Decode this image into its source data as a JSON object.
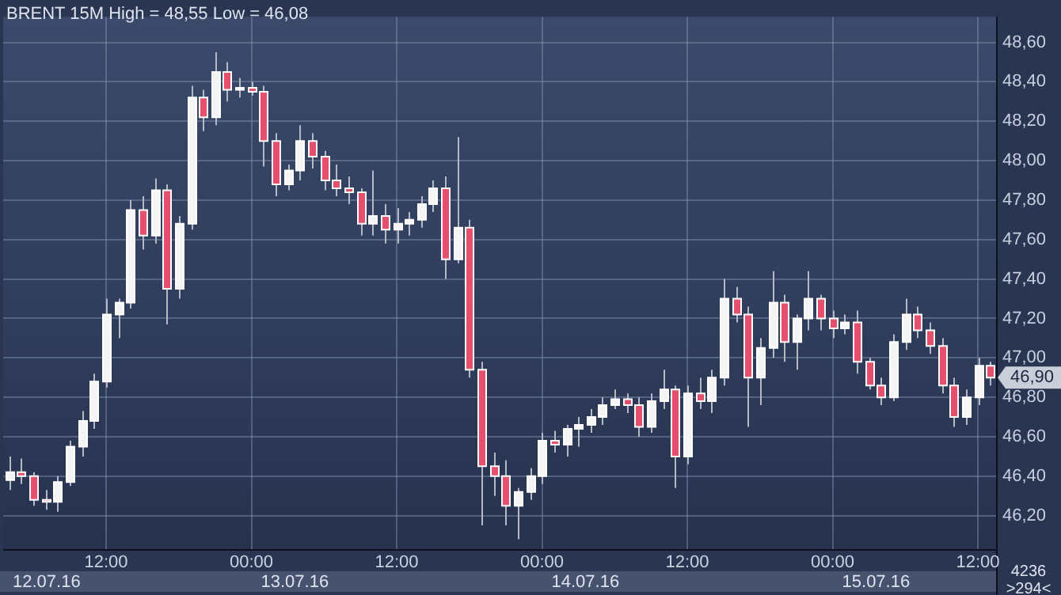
{
  "chart_data": {
    "type": "candlestick",
    "title": "BRENT 15M High = 48,55 Low = 46,08",
    "categories": [
      null,
      null,
      null,
      null,
      null,
      null,
      null,
      null,
      "12:00",
      null,
      null,
      null,
      null,
      null,
      null,
      null,
      null,
      null,
      null,
      null,
      "00:00",
      null,
      null,
      null,
      null,
      null,
      null,
      null,
      null,
      null,
      null,
      null,
      "12:00",
      null,
      null,
      null,
      null,
      null,
      null,
      null,
      null,
      null,
      null,
      null,
      "00:00",
      null,
      null,
      null,
      null,
      null,
      null,
      null,
      null,
      null,
      null,
      null,
      "12:00",
      null,
      null,
      null,
      null,
      null,
      null,
      null,
      null,
      null,
      null,
      null,
      "00:00",
      null,
      null,
      null,
      null,
      null,
      null,
      null,
      null,
      null,
      null,
      null,
      "12:00",
      null
    ],
    "ohlc": [
      [
        46.38,
        46.5,
        46.33,
        46.42
      ],
      [
        46.42,
        46.49,
        46.36,
        46.4
      ],
      [
        46.4,
        46.42,
        46.25,
        46.28
      ],
      [
        46.28,
        46.33,
        46.23,
        46.27
      ],
      [
        46.27,
        46.4,
        46.22,
        46.37
      ],
      [
        46.37,
        46.58,
        46.35,
        46.55
      ],
      [
        46.55,
        46.73,
        46.5,
        46.68
      ],
      [
        46.68,
        46.92,
        46.64,
        46.88
      ],
      [
        46.88,
        47.3,
        46.85,
        47.22
      ],
      [
        47.22,
        47.3,
        47.1,
        47.28
      ],
      [
        47.28,
        47.8,
        47.25,
        47.75
      ],
      [
        47.75,
        47.82,
        47.55,
        47.62
      ],
      [
        47.62,
        47.91,
        47.58,
        47.85
      ],
      [
        47.85,
        47.88,
        47.17,
        47.35
      ],
      [
        47.35,
        47.72,
        47.3,
        47.68
      ],
      [
        47.68,
        48.38,
        47.65,
        48.32
      ],
      [
        48.32,
        48.36,
        48.15,
        48.22
      ],
      [
        48.22,
        48.55,
        48.18,
        48.45
      ],
      [
        48.45,
        48.5,
        48.3,
        48.36
      ],
      [
        48.36,
        48.42,
        48.32,
        48.37
      ],
      [
        48.37,
        48.4,
        48.33,
        48.35
      ],
      [
        48.35,
        48.38,
        47.97,
        48.1
      ],
      [
        48.1,
        48.14,
        47.82,
        47.88
      ],
      [
        47.88,
        47.98,
        47.85,
        47.95
      ],
      [
        47.95,
        48.18,
        47.9,
        48.1
      ],
      [
        48.1,
        48.14,
        47.96,
        48.02
      ],
      [
        48.02,
        48.05,
        47.85,
        47.9
      ],
      [
        47.9,
        47.98,
        47.82,
        47.86
      ],
      [
        47.86,
        47.92,
        47.78,
        47.84
      ],
      [
        47.84,
        47.86,
        47.62,
        47.68
      ],
      [
        47.68,
        47.95,
        47.62,
        47.72
      ],
      [
        47.72,
        47.78,
        47.58,
        47.65
      ],
      [
        47.65,
        47.76,
        47.58,
        47.68
      ],
      [
        47.68,
        47.74,
        47.62,
        47.7
      ],
      [
        47.7,
        47.82,
        47.66,
        47.78
      ],
      [
        47.78,
        47.9,
        47.74,
        47.86
      ],
      [
        47.86,
        47.92,
        47.4,
        47.5
      ],
      [
        47.5,
        48.12,
        47.48,
        47.66
      ],
      [
        47.66,
        47.7,
        46.9,
        46.94
      ],
      [
        46.94,
        46.98,
        46.15,
        46.45
      ],
      [
        46.45,
        46.52,
        46.3,
        46.4
      ],
      [
        46.4,
        46.48,
        46.15,
        46.25
      ],
      [
        46.25,
        46.34,
        46.08,
        46.32
      ],
      [
        46.32,
        46.44,
        46.28,
        46.4
      ],
      [
        46.4,
        46.62,
        46.36,
        46.58
      ],
      [
        46.58,
        46.63,
        46.52,
        46.56
      ],
      [
        46.56,
        46.66,
        46.5,
        46.64
      ],
      [
        46.64,
        46.7,
        46.55,
        46.66
      ],
      [
        46.66,
        46.74,
        46.62,
        46.7
      ],
      [
        46.7,
        46.8,
        46.66,
        46.76
      ],
      [
        46.76,
        46.84,
        46.74,
        46.79
      ],
      [
        46.79,
        46.82,
        46.72,
        46.76
      ],
      [
        46.76,
        46.8,
        46.6,
        46.65
      ],
      [
        46.65,
        46.82,
        46.62,
        46.78
      ],
      [
        46.78,
        46.94,
        46.74,
        46.84
      ],
      [
        46.84,
        46.86,
        46.34,
        46.5
      ],
      [
        46.5,
        46.86,
        46.46,
        46.82
      ],
      [
        46.82,
        46.9,
        46.74,
        46.78
      ],
      [
        46.78,
        46.94,
        46.72,
        46.9
      ],
      [
        46.9,
        47.4,
        46.86,
        47.3
      ],
      [
        47.3,
        47.36,
        47.18,
        47.22
      ],
      [
        47.22,
        47.26,
        46.65,
        46.9
      ],
      [
        46.9,
        47.1,
        46.76,
        47.05
      ],
      [
        47.05,
        47.44,
        47.0,
        47.28
      ],
      [
        47.28,
        47.32,
        46.98,
        47.08
      ],
      [
        47.08,
        47.22,
        46.94,
        47.2
      ],
      [
        47.2,
        47.44,
        47.14,
        47.3
      ],
      [
        47.3,
        47.32,
        47.14,
        47.2
      ],
      [
        47.2,
        47.24,
        47.1,
        47.15
      ],
      [
        47.15,
        47.22,
        47.12,
        47.18
      ],
      [
        47.18,
        47.24,
        46.92,
        46.98
      ],
      [
        46.98,
        47.0,
        46.84,
        46.86
      ],
      [
        46.86,
        46.9,
        46.76,
        46.8
      ],
      [
        46.8,
        47.12,
        46.78,
        47.08
      ],
      [
        47.08,
        47.3,
        47.04,
        47.22
      ],
      [
        47.22,
        47.26,
        47.1,
        47.14
      ],
      [
        47.14,
        47.18,
        47.02,
        47.06
      ],
      [
        47.06,
        47.1,
        46.82,
        46.86
      ],
      [
        46.86,
        46.9,
        46.65,
        46.7
      ],
      [
        46.7,
        46.84,
        46.66,
        46.8
      ],
      [
        46.8,
        47.0,
        46.76,
        46.96
      ],
      [
        46.96,
        46.98,
        46.86,
        46.9
      ]
    ],
    "ylim": [
      46.03,
      48.73
    ],
    "yticks": [
      {
        "value": 46.2,
        "label": "46,20"
      },
      {
        "value": 46.4,
        "label": "46,40"
      },
      {
        "value": 46.6,
        "label": "46,60"
      },
      {
        "value": 46.8,
        "label": "46,80"
      },
      {
        "value": 47.0,
        "label": "47,00"
      },
      {
        "value": 47.2,
        "label": "47,20"
      },
      {
        "value": 47.4,
        "label": "47,40"
      },
      {
        "value": 47.6,
        "label": "47,60"
      },
      {
        "value": 47.8,
        "label": "47,80"
      },
      {
        "value": 48.0,
        "label": "48,00"
      },
      {
        "value": 48.2,
        "label": "48,20"
      },
      {
        "value": 48.4,
        "label": "48,40"
      },
      {
        "value": 48.6,
        "label": "48,60"
      }
    ],
    "grid": true,
    "legend": false,
    "annotations": [
      "12.07.16",
      "13.07.16",
      "14.07.16",
      "15.07.16",
      {
        "text": "46,90",
        "y": 46.9
      },
      "4236",
      ">294<"
    ]
  }
}
